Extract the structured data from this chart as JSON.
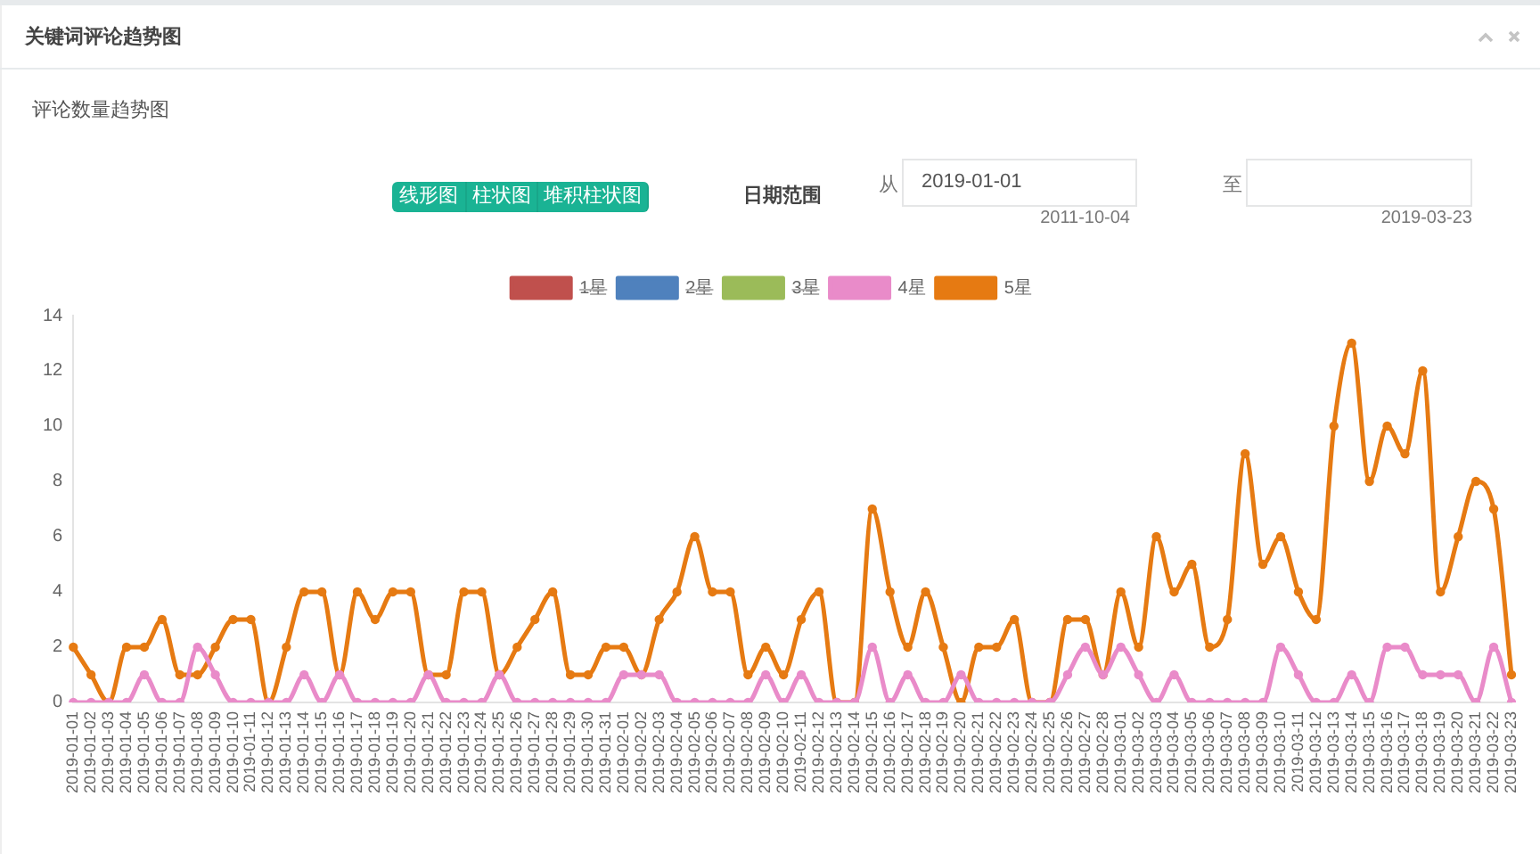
{
  "chart_data": {
    "type": "line",
    "title": "关键词评论趋势图",
    "subtitle": "评论数量趋势图",
    "annotations": [
      "线形图",
      "柱状图",
      "堆积柱状图",
      "日期范围",
      "从",
      "2019-01-01",
      "2011-10-04",
      "至",
      "2019-03-23"
    ],
    "categories": [
      "2019-01-01",
      "2019-01-02",
      "2019-01-03",
      "2019-01-04",
      "2019-01-05",
      "2019-01-06",
      "2019-01-07",
      "2019-01-08",
      "2019-01-09",
      "2019-01-10",
      "2019-01-11",
      "2019-01-12",
      "2019-01-13",
      "2019-01-14",
      "2019-01-15",
      "2019-01-16",
      "2019-01-17",
      "2019-01-18",
      "2019-01-19",
      "2019-01-20",
      "2019-01-21",
      "2019-01-22",
      "2019-01-23",
      "2019-01-24",
      "2019-01-25",
      "2019-01-26",
      "2019-01-27",
      "2019-01-28",
      "2019-01-29",
      "2019-01-30",
      "2019-01-31",
      "2019-02-01",
      "2019-02-02",
      "2019-02-03",
      "2019-02-04",
      "2019-02-05",
      "2019-02-06",
      "2019-02-07",
      "2019-02-08",
      "2019-02-09",
      "2019-02-10",
      "2019-02-11",
      "2019-02-12",
      "2019-02-13",
      "2019-02-14",
      "2019-02-15",
      "2019-02-16",
      "2019-02-17",
      "2019-02-18",
      "2019-02-19",
      "2019-02-20",
      "2019-02-21",
      "2019-02-22",
      "2019-02-23",
      "2019-02-24",
      "2019-02-25",
      "2019-02-26",
      "2019-02-27",
      "2019-02-28",
      "2019-03-01",
      "2019-03-02",
      "2019-03-03",
      "2019-03-04",
      "2019-03-05",
      "2019-03-06",
      "2019-03-07",
      "2019-03-08",
      "2019-03-09",
      "2019-03-10",
      "2019-03-11",
      "2019-03-12",
      "2019-03-13",
      "2019-03-14",
      "2019-03-15",
      "2019-03-16",
      "2019-03-17",
      "2019-03-18",
      "2019-03-19",
      "2019-03-20",
      "2019-03-21",
      "2019-03-22",
      "2019-03-23"
    ],
    "series": [
      {
        "name": "1星",
        "color": "#c0504d",
        "values": [
          null,
          null,
          null,
          null,
          null,
          null,
          null,
          null,
          null,
          null,
          null,
          null,
          null,
          null,
          null,
          null,
          null,
          null,
          null,
          null,
          null,
          null,
          null,
          null,
          null,
          null,
          null,
          null,
          null,
          null,
          null,
          null,
          null,
          null,
          null,
          null,
          null,
          null,
          null,
          null,
          null,
          null,
          null,
          null,
          null,
          null,
          null,
          null,
          null,
          null,
          null,
          null,
          null,
          null,
          null,
          null,
          null,
          null,
          null,
          null,
          null,
          null,
          null,
          null,
          null,
          null,
          null,
          null,
          null,
          null,
          null,
          null,
          null,
          null,
          null,
          null,
          null,
          null,
          null,
          null,
          null,
          null
        ]
      },
      {
        "name": "2星",
        "color": "#4f81bd",
        "values": [
          null,
          null,
          null,
          null,
          null,
          null,
          null,
          null,
          null,
          null,
          null,
          null,
          null,
          null,
          null,
          null,
          null,
          null,
          null,
          null,
          null,
          null,
          null,
          null,
          null,
          null,
          null,
          null,
          null,
          null,
          null,
          null,
          null,
          null,
          null,
          null,
          null,
          null,
          null,
          null,
          null,
          null,
          null,
          null,
          null,
          null,
          null,
          null,
          null,
          null,
          null,
          null,
          null,
          null,
          null,
          null,
          null,
          null,
          null,
          null,
          null,
          null,
          null,
          null,
          null,
          null,
          null,
          null,
          null,
          null,
          null,
          null,
          null,
          null,
          null,
          null,
          null,
          null,
          null,
          null,
          null,
          null
        ]
      },
      {
        "name": "3星",
        "color": "#9bbb59",
        "values": [
          null,
          null,
          null,
          null,
          null,
          null,
          null,
          null,
          null,
          null,
          null,
          null,
          null,
          null,
          null,
          null,
          null,
          null,
          null,
          null,
          null,
          null,
          null,
          null,
          null,
          null,
          null,
          null,
          null,
          null,
          null,
          null,
          null,
          null,
          null,
          null,
          null,
          null,
          null,
          null,
          null,
          null,
          null,
          null,
          null,
          null,
          null,
          null,
          null,
          null,
          null,
          null,
          null,
          null,
          null,
          null,
          null,
          null,
          null,
          null,
          null,
          null,
          null,
          null,
          null,
          null,
          null,
          null,
          null,
          null,
          null,
          null,
          null,
          null,
          null,
          null,
          null,
          null,
          null,
          null,
          null,
          null
        ]
      },
      {
        "name": "4星",
        "color": "#e98bc9",
        "values": [
          0,
          0,
          0,
          0,
          1,
          0,
          0,
          2,
          1,
          0,
          0,
          0,
          0,
          1,
          0,
          1,
          0,
          0,
          0,
          0,
          1,
          0,
          0,
          0,
          1,
          0,
          0,
          0,
          0,
          0,
          0,
          1,
          1,
          1,
          0,
          0,
          0,
          0,
          0,
          1,
          0,
          1,
          0,
          0,
          0,
          2,
          0,
          1,
          0,
          0,
          1,
          0,
          0,
          0,
          0,
          0,
          1,
          2,
          1,
          2,
          1,
          0,
          1,
          0,
          0,
          0,
          0,
          0,
          2,
          1,
          0,
          0,
          1,
          0,
          2,
          2,
          1,
          1,
          1,
          0,
          2,
          0
        ]
      },
      {
        "name": "5星",
        "color": "#e67a12",
        "values": [
          2,
          1,
          0,
          2,
          2,
          3,
          1,
          1,
          2,
          3,
          3,
          0,
          2,
          4,
          4,
          1,
          4,
          3,
          4,
          4,
          1,
          1,
          4,
          4,
          1,
          2,
          3,
          4,
          1,
          1,
          2,
          2,
          1,
          3,
          4,
          6,
          4,
          4,
          1,
          2,
          1,
          3,
          4,
          0,
          0,
          7,
          4,
          2,
          4,
          2,
          0,
          2,
          2,
          3,
          0,
          0,
          3,
          3,
          1,
          4,
          2,
          6,
          4,
          5,
          2,
          3,
          9,
          5,
          6,
          4,
          3,
          10,
          13,
          8,
          10,
          9,
          12,
          4,
          6,
          8,
          7,
          1
        ]
      }
    ],
    "ylim": [
      0,
      14
    ],
    "yticks": [
      0,
      2,
      4,
      6,
      8,
      10,
      12,
      14
    ],
    "grid": false,
    "legend": "top",
    "marker": "circle",
    "line_style": "solid"
  }
}
